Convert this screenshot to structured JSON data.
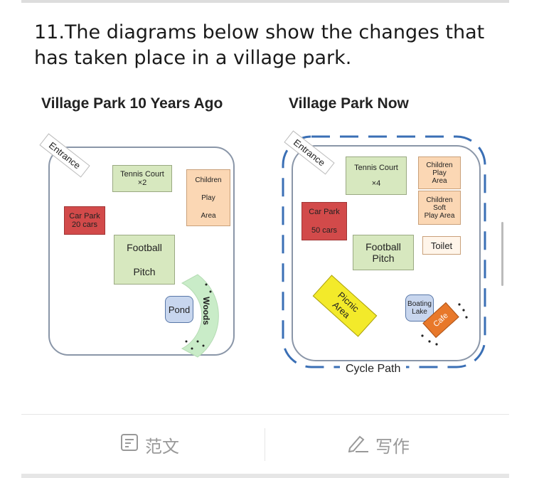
{
  "question": {
    "text": "11.The diagrams below show the changes that has taken place in a village park."
  },
  "diagram_before": {
    "title": "Village Park 10 Years Ago",
    "entrance": "Entrance",
    "tennis_line1": "Tennis Court",
    "tennis_line2": "×2",
    "children_line1": "Children",
    "children_line2": "Play",
    "children_line3": "Area",
    "carpark_line1": "Car Park",
    "carpark_line2": "20 cars",
    "football_line1": "Football",
    "football_line2": "Pitch",
    "pond": "Pond",
    "woods": "Woods"
  },
  "diagram_now": {
    "title": "Village Park Now",
    "entrance": "Entrance",
    "tennis_line1": "Tennis Court",
    "tennis_line2": "×4",
    "children_line1": "Children",
    "children_line2": "Play",
    "children_line3": "Area",
    "soft_line1": "Children",
    "soft_line2": "Soft",
    "soft_line3": "Play Area",
    "carpark_line1": "Car Park",
    "carpark_line2": "50 cars",
    "football_line1": "Football",
    "football_line2": "Pitch",
    "toilet": "Toilet",
    "picnic_line1": "Picnic",
    "picnic_line2": "Area",
    "boating_line1": "Boating",
    "boating_line2": "Lake",
    "cafe": "Cafe",
    "cycle_path": "Cycle Path"
  },
  "tabs": {
    "model_essay": "范文",
    "writing": "写作"
  },
  "colors": {
    "green": "#d7e8bf",
    "orange": "#fbd7b4",
    "red": "#d24a4a",
    "blue_path": "#3a6fb5",
    "cafe": "#e8782a",
    "picnic": "#f3ea2a"
  }
}
